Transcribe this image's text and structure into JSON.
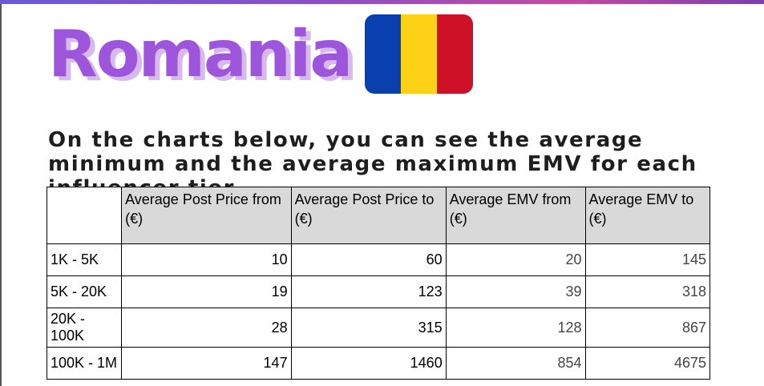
{
  "header": {
    "title": "Romania",
    "subtitle": "On the charts below, you can see the average minimum and the average maximum EMV for each influencer tier."
  },
  "table": {
    "columns": [
      "",
      "Average Post Price from (€)",
      "Average Post Price to (€)",
      "Average EMV from (€)",
      "Average EMV to (€)"
    ],
    "rows": [
      [
        "1K - 5K",
        10,
        60,
        20,
        145
      ],
      [
        "5K - 20K",
        19,
        123,
        39,
        318
      ],
      [
        "20K - 100K",
        28,
        315,
        128,
        867
      ],
      [
        "100K - 1M",
        147,
        1460,
        854,
        4675
      ]
    ]
  }
}
